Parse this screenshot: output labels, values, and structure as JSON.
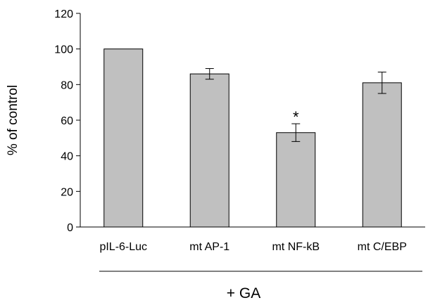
{
  "chart_data": {
    "type": "bar",
    "categories": [
      "pIL-6-Luc",
      "mt AP-1",
      "mt NF-kB",
      "mt C/EBP"
    ],
    "values": [
      100,
      86,
      53,
      81
    ],
    "error": [
      0,
      3,
      5,
      6
    ],
    "annotations": [
      "",
      "",
      "*",
      ""
    ],
    "ylabel": "% of control",
    "xlabel": "+ GA",
    "ylim": [
      0,
      120
    ],
    "yticks": [
      0,
      20,
      40,
      60,
      80,
      100,
      120
    ],
    "grid": false,
    "legend": "none",
    "bar_color": "#c0c0c0",
    "edge_color": "#000000"
  }
}
